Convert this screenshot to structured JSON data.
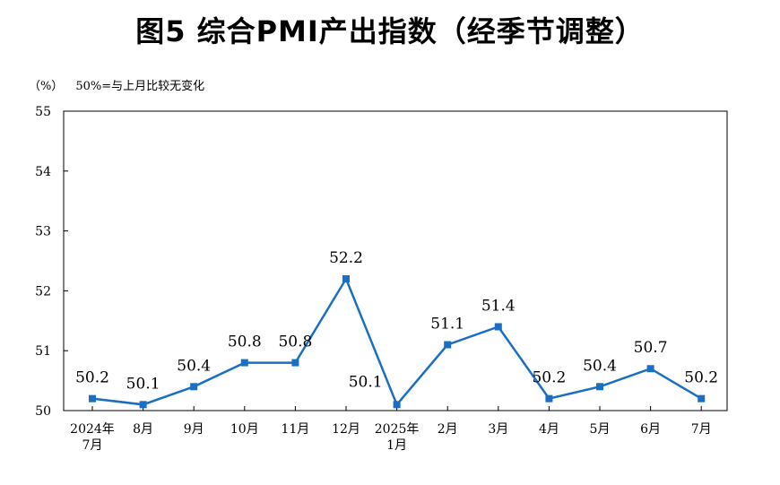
{
  "chart_data": {
    "type": "line",
    "title": "图5  综合PMI产出指数（经季节调整）",
    "unit_label": "（%）",
    "reference_note": "50%=与上月比较无变化",
    "categories": [
      [
        "2024年",
        "7月"
      ],
      [
        "8月"
      ],
      [
        "9月"
      ],
      [
        "10月"
      ],
      [
        "11月"
      ],
      [
        "12月"
      ],
      [
        "2025年",
        "1月"
      ],
      [
        "2月"
      ],
      [
        "3月"
      ],
      [
        "4月"
      ],
      [
        "5月"
      ],
      [
        "6月"
      ],
      [
        "7月"
      ]
    ],
    "series": [
      {
        "values": [
          50.2,
          50.1,
          50.4,
          50.8,
          50.8,
          52.2,
          50.1,
          51.1,
          51.4,
          50.2,
          50.4,
          50.7,
          50.2
        ],
        "labels": [
          "50.2",
          "50.1",
          "50.4",
          "50.8",
          "50.8",
          "52.2",
          "50.1",
          "51.1",
          "51.4",
          "50.2",
          "50.4",
          "50.7",
          "50.2"
        ],
        "color": "#1a6fc4"
      }
    ],
    "ylim": [
      50,
      55
    ],
    "yticks": [
      "50",
      "51",
      "52",
      "53",
      "54",
      "55"
    ],
    "grid": false,
    "legend": "none"
  }
}
